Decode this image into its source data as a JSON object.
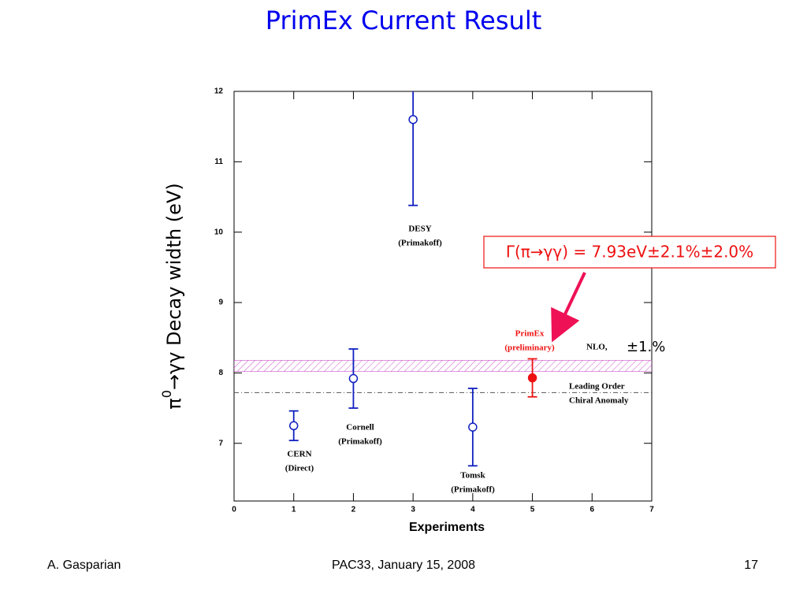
{
  "chart_data": {
    "type": "errorbar",
    "title": "PrimEx Current Result",
    "ylabel": [
      "π",
      "0",
      "→γγ Decay width (eV)"
    ],
    "xlabel": "Experiments",
    "x": [
      1,
      2,
      3,
      4,
      5
    ],
    "values": [
      7.25,
      7.92,
      11.6,
      7.23,
      7.93
    ],
    "errors": [
      0.21,
      0.42,
      1.22,
      0.55,
      0.27
    ],
    "colors": [
      "#1020c0",
      "#1020c0",
      "#1020c0",
      "#1020c0",
      "#ee1111"
    ],
    "filled": [
      false,
      false,
      false,
      false,
      true
    ],
    "point_labels": [
      [
        "CERN",
        "(Direct)"
      ],
      [
        "Cornell",
        "(Primakoff)"
      ],
      [
        "DESY",
        "(Primakoff)"
      ],
      [
        "Tomsk",
        "(Primakoff)"
      ],
      [
        "PrimEx",
        "(preliminary)"
      ]
    ],
    "xlim": [
      0,
      7
    ],
    "xticks": [
      0,
      1,
      2,
      3,
      4,
      5,
      6,
      7
    ],
    "ylim": [
      6.18,
      12
    ],
    "yticks": [
      7,
      8,
      9,
      10,
      11,
      12
    ],
    "nlo_band": {
      "label": "NLO,",
      "note": "±1.%",
      "range": [
        8.02,
        8.18
      ],
      "color": "#cc55cc"
    },
    "leading_order": {
      "lines": [
        "Leading Order",
        "Chiral Anomaly"
      ],
      "value": 7.72
    },
    "callout": "Γ(π→γγ) = 7.93eV±2.1%±2.0%"
  },
  "footer": {
    "left": "A. Gasparian",
    "center": "PAC33, January 15, 2008",
    "right": "17"
  }
}
